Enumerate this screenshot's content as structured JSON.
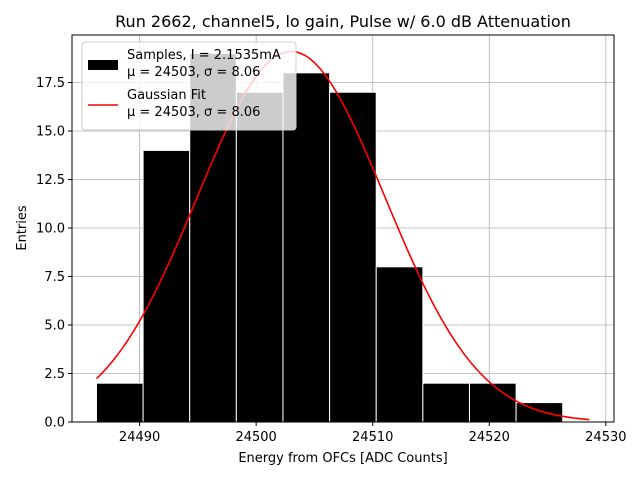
{
  "chart_data": {
    "type": "bar",
    "title": "Run 2662, channel5, lo gain, Pulse w/ 6.0 dB Attenuation",
    "xlabel": "Energy from OFCs [ADC Counts]",
    "ylabel": "Entries",
    "xlim": [
      24484.2,
      24530.7
    ],
    "ylim": [
      0,
      19.95
    ],
    "x_ticks": [
      24490,
      24500,
      24510,
      24520,
      24530
    ],
    "y_ticks": [
      0.0,
      2.5,
      5.0,
      7.5,
      10.0,
      12.5,
      15.0,
      17.5
    ],
    "grid": true,
    "histogram": {
      "name": "Samples, I = 2.1535mA",
      "bin_edges": [
        24486.3,
        24490.3,
        24494.3,
        24498.3,
        24502.3,
        24506.3,
        24510.3,
        24514.3,
        24518.3,
        24522.3,
        24526.3
      ],
      "counts": [
        2,
        14,
        19,
        17,
        18,
        17,
        8,
        2,
        2,
        1
      ],
      "color": "#000000"
    },
    "fit": {
      "name": "Gaussian Fit",
      "mu": 24503,
      "sigma": 8.06,
      "amplitude": 19.1,
      "x_range": [
        24486.3,
        24528.6
      ],
      "color": "#ff0000"
    },
    "legend": {
      "placement": "upper-left",
      "entries": [
        {
          "line1": "Samples, I = 2.1535mA",
          "line2": "μ = 24503, σ = 8.06"
        },
        {
          "line1": "Gaussian Fit",
          "line2": "μ = 24503, σ = 8.06"
        }
      ]
    }
  }
}
